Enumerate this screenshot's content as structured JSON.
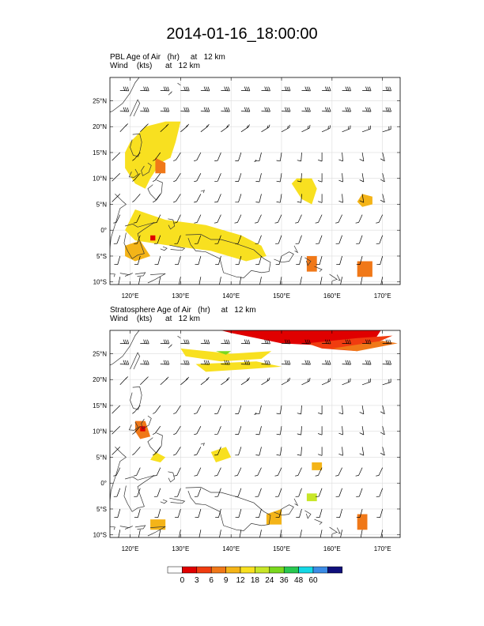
{
  "title": "2014-01-16_18:00:00",
  "panels": [
    {
      "line1": "PBL Age of Air   (hr)     at   12 km",
      "line2": "Wind    (kts)      at   12 km"
    },
    {
      "line1": "Stratosphere Age of Air   (hr)     at   12 km",
      "line2": "Wind    (kts)      at   12 km"
    }
  ],
  "lat_labels": [
    "25°N",
    "20°N",
    "15°N",
    "10°N",
    "5°N",
    "0°",
    "5°S",
    "10°S"
  ],
  "lon_labels": [
    "120°E",
    "130°E",
    "140°E",
    "150°E",
    "160°E",
    "170°E"
  ],
  "colorbar": {
    "labels": [
      "0",
      "3",
      "6",
      "9",
      "12",
      "18",
      "24",
      "36",
      "48",
      "60"
    ],
    "colors": [
      "#ffffff",
      "#e00000",
      "#f03c10",
      "#f07818",
      "#f4b418",
      "#f8e020",
      "#c8e628",
      "#7ad81e",
      "#28c850",
      "#14d8e6",
      "#3c8ce6",
      "#10107c"
    ]
  }
}
